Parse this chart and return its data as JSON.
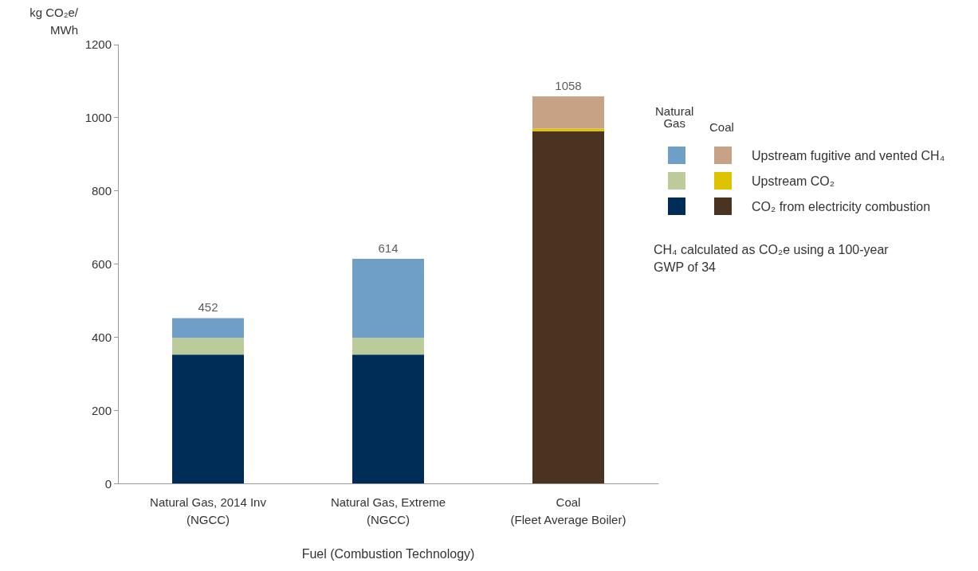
{
  "chart_data": {
    "type": "bar",
    "stacked": true,
    "ylabel": "kg CO₂e/\nMWh",
    "xlabel": "Fuel (Combustion Technology)",
    "categories": [
      "Natural Gas, 2014 Inv\n(NGCC)",
      "Natural Gas, Extreme\n(NGCC)",
      "Coal\n(Fleet Average Boiler)"
    ],
    "series": [
      {
        "color": "#002d57",
        "values": [
          352,
          352,
          null
        ]
      },
      {
        "color": "#bccb9a",
        "values": [
          46,
          46,
          null
        ]
      },
      {
        "color": "#6f9ec7",
        "values": [
          54,
          216,
          null
        ]
      },
      {
        "name": "CO₂ from electricity combustion",
        "color": "#4a3320",
        "values": [
          null,
          null,
          963
        ]
      },
      {
        "name": "Upstream CO₂",
        "color": "#dcc200",
        "values": [
          null,
          null,
          7
        ]
      },
      {
        "name": "Upstream fugitive and vented CH₄",
        "color": "#c8a284",
        "values": [
          null,
          null,
          88
        ]
      }
    ],
    "totals": [
      "452",
      "614",
      "1058"
    ],
    "ylim": [
      0,
      1200
    ],
    "yticks": [
      0,
      200,
      400,
      600,
      800,
      1000,
      1200
    ],
    "grid": false,
    "legend": "right",
    "annotations": [
      "Natural\nGas",
      "Coal",
      "CH₄ calculated as CO₂e using a 100-year GWP of 34"
    ]
  }
}
